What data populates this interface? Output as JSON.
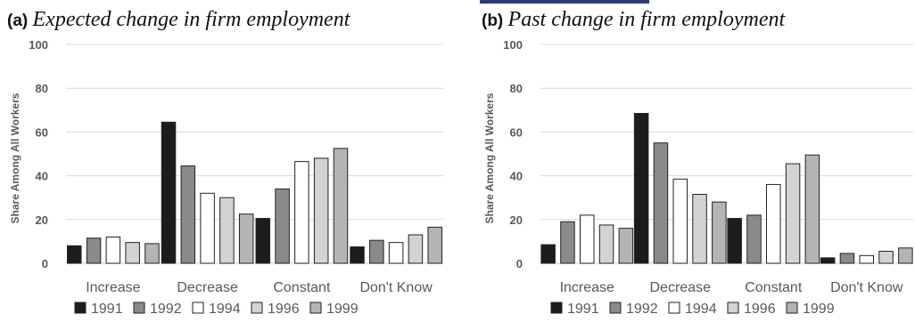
{
  "colors": {
    "accent_bar": "#2e3b73",
    "series": [
      "#1c1c1c",
      "#8a8a8a",
      "#ffffff",
      "#d3d3d3",
      "#b4b4b4"
    ],
    "bar_stroke": "#222222",
    "grid": "#d9d9d9",
    "text": "#595959"
  },
  "chart_data": [
    {
      "type": "bar",
      "panel": "(a)",
      "title": "Expected change in firm employment",
      "ylabel": "Share Among All Workers",
      "xlabel": "",
      "ylim": [
        0,
        100
      ],
      "yticks": [
        "0",
        "20",
        "40",
        "60",
        "80",
        "100"
      ],
      "grid": true,
      "legend_position": "bottom-left",
      "categories": [
        "Increase",
        "Decrease",
        "Constant",
        "Don't Know"
      ],
      "series": [
        {
          "name": "1991",
          "values": [
            8,
            64.5,
            20.5,
            7.5
          ]
        },
        {
          "name": "1992",
          "values": [
            11.5,
            44.5,
            34,
            10.5
          ]
        },
        {
          "name": "1994",
          "values": [
            12,
            32,
            46.5,
            9.5
          ]
        },
        {
          "name": "1996",
          "values": [
            9.5,
            30,
            48,
            13
          ]
        },
        {
          "name": "1999",
          "values": [
            9,
            22.5,
            52.5,
            16.5
          ]
        }
      ]
    },
    {
      "type": "bar",
      "panel": "(b)",
      "title": "Past change in firm employment",
      "ylabel": "Share Among All Workers",
      "xlabel": "",
      "ylim": [
        0,
        100
      ],
      "yticks": [
        "0",
        "20",
        "40",
        "60",
        "80",
        "100"
      ],
      "grid": true,
      "legend_position": "bottom-left",
      "categories": [
        "Increase",
        "Decrease",
        "Constant",
        "Don't Know"
      ],
      "series": [
        {
          "name": "1991",
          "values": [
            8.5,
            68.5,
            20.5,
            2.5
          ]
        },
        {
          "name": "1992",
          "values": [
            19,
            55,
            22,
            4.5
          ]
        },
        {
          "name": "1994",
          "values": [
            22,
            38.5,
            36,
            3.5
          ]
        },
        {
          "name": "1996",
          "values": [
            17.5,
            31.5,
            45.5,
            5.5
          ]
        },
        {
          "name": "1999",
          "values": [
            16,
            28,
            49.5,
            7
          ]
        }
      ]
    }
  ]
}
